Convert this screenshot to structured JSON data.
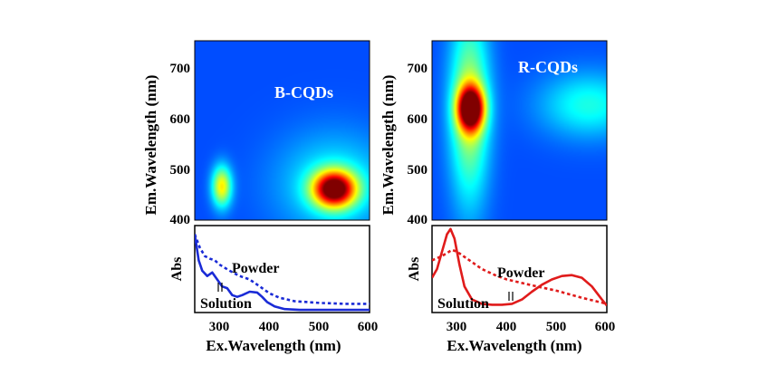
{
  "panels": [
    {
      "id": "b",
      "map_label": "B-CQDs",
      "map_ylabel": "Em.Wavelength (nm)",
      "map_yticks": [
        "700",
        "600",
        "500",
        "400"
      ],
      "abs_ylabel": "Abs",
      "xlabel": "Ex.Wavelength (nm)",
      "xticks": [
        "300",
        "400",
        "500",
        "600"
      ],
      "annotation_powder": "Powder",
      "annotation_solution": "Solution",
      "color": "#1a2bd6"
    },
    {
      "id": "r",
      "map_label": "R-CQDs",
      "map_ylabel": "Em.Wavelength (nm)",
      "map_yticks": [
        "700",
        "600",
        "500",
        "400"
      ],
      "abs_ylabel": "Abs",
      "xlabel": "Ex.Wavelength (nm)",
      "xticks": [
        "300",
        "400",
        "500",
        "600"
      ],
      "annotation_powder": "Powder",
      "annotation_solution": "Solution",
      "color": "#e01b1b"
    }
  ],
  "chart_data": [
    {
      "type": "heatmap",
      "panel": "B-CQDs",
      "x_range": [
        250,
        400
      ],
      "y_range": [
        400,
        750
      ],
      "colormap": "jet",
      "background_color": "#1a3fd9",
      "hotspots": [
        {
          "x": 370,
          "y": 460,
          "intensity": 1.0,
          "sx": 13,
          "sy": 25
        },
        {
          "x": 273,
          "y": 465,
          "intensity": 0.55,
          "sx": 6,
          "sy": 28
        },
        {
          "x": 370,
          "y": 470,
          "intensity": 0.22,
          "sx": 35,
          "sy": 70
        }
      ]
    },
    {
      "type": "heatmap",
      "panel": "R-CQDs",
      "x_range": [
        250,
        400
      ],
      "y_range": [
        400,
        750
      ],
      "colormap": "jet",
      "background_color": "#1a3fd9",
      "hotspots": [
        {
          "x": 283,
          "y": 618,
          "intensity": 1.0,
          "sx": 8,
          "sy": 30
        },
        {
          "x": 282,
          "y": 620,
          "intensity": 0.45,
          "sx": 12,
          "sy": 130
        },
        {
          "x": 385,
          "y": 625,
          "intensity": 0.25,
          "sx": 30,
          "sy": 45
        }
      ]
    },
    {
      "type": "line",
      "panel": "B-CQDs absorption",
      "x_range": [
        250,
        600
      ],
      "y_range": [
        0,
        1
      ],
      "series": [
        {
          "name": "Solution",
          "style": "solid",
          "x": [
            250,
            258,
            265,
            275,
            285,
            295,
            305,
            315,
            325,
            335,
            345,
            360,
            375,
            385,
            395,
            410,
            430,
            460,
            500,
            550,
            600
          ],
          "y": [
            0.9,
            0.6,
            0.48,
            0.42,
            0.46,
            0.38,
            0.3,
            0.28,
            0.2,
            0.18,
            0.2,
            0.24,
            0.23,
            0.18,
            0.12,
            0.07,
            0.04,
            0.03,
            0.03,
            0.03,
            0.03
          ]
        },
        {
          "name": "Powder",
          "style": "dotted",
          "x": [
            250,
            260,
            270,
            280,
            290,
            300,
            320,
            340,
            360,
            380,
            400,
            420,
            450,
            500,
            550,
            600
          ],
          "y": [
            0.9,
            0.75,
            0.65,
            0.62,
            0.6,
            0.55,
            0.48,
            0.42,
            0.38,
            0.3,
            0.22,
            0.17,
            0.13,
            0.11,
            0.1,
            0.1
          ]
        }
      ]
    },
    {
      "type": "line",
      "panel": "R-CQDs absorption",
      "x_range": [
        250,
        600
      ],
      "y_range": [
        0,
        1
      ],
      "series": [
        {
          "name": "Solution",
          "style": "solid",
          "x": [
            250,
            260,
            270,
            280,
            287,
            295,
            305,
            315,
            330,
            350,
            370,
            390,
            410,
            430,
            450,
            470,
            490,
            510,
            530,
            550,
            570,
            590,
            600
          ],
          "y": [
            0.4,
            0.5,
            0.7,
            0.9,
            0.96,
            0.85,
            0.55,
            0.3,
            0.15,
            0.1,
            0.09,
            0.09,
            0.1,
            0.15,
            0.24,
            0.32,
            0.38,
            0.42,
            0.43,
            0.4,
            0.3,
            0.15,
            0.08
          ]
        },
        {
          "name": "Powder",
          "style": "dotted",
          "x": [
            250,
            270,
            290,
            300,
            320,
            350,
            380,
            400,
            430,
            460,
            500,
            550,
            600
          ],
          "y": [
            0.6,
            0.65,
            0.72,
            0.7,
            0.62,
            0.5,
            0.42,
            0.38,
            0.34,
            0.3,
            0.25,
            0.17,
            0.1
          ]
        }
      ]
    }
  ]
}
